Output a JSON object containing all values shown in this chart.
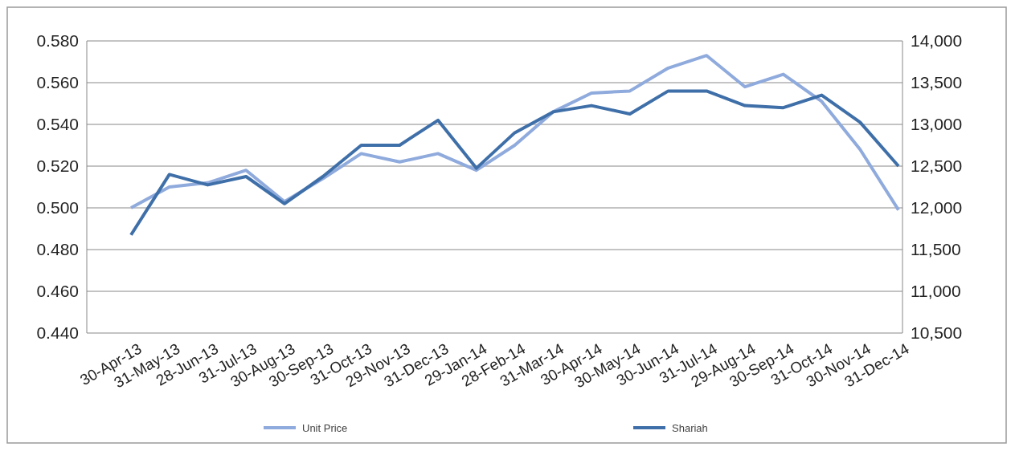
{
  "chart_data": {
    "type": "line",
    "categories": [
      "30-Apr-13",
      "31-May-13",
      "28-Jun-13",
      "31-Jul-13",
      "30-Aug-13",
      "30-Sep-13",
      "31-Oct-13",
      "29-Nov-13",
      "31-Dec-13",
      "29-Jan-14",
      "28-Feb-14",
      "31-Mar-14",
      "30-Apr-14",
      "30-May-14",
      "30-Jun-14",
      "31-Jul-14",
      "29-Aug-14",
      "30-Sep-14",
      "31-Oct-14",
      "30-Nov-14",
      "31-Dec-14"
    ],
    "series": [
      {
        "name": "Unit Price",
        "color": "#8faadc",
        "values": [
          0.5,
          0.51,
          0.512,
          0.518,
          0.503,
          0.514,
          0.526,
          0.522,
          0.526,
          0.518,
          0.53,
          0.546,
          0.555,
          0.556,
          0.567,
          0.573,
          0.558,
          0.564,
          0.551,
          0.528,
          0.499
        ]
      },
      {
        "name": "Shariah",
        "color": "#3f6fa8",
        "axis": "y2",
        "values": [
          11675,
          12400,
          12275,
          12375,
          12050,
          12375,
          12750,
          12750,
          13050,
          12475,
          12900,
          13150,
          13225,
          13125,
          13400,
          13400,
          13225,
          13200,
          13350,
          13025,
          12500
        ]
      }
    ],
    "ylim": [
      0.44,
      0.58
    ],
    "yticks": [
      {
        "value": 0.44,
        "label": "0.440"
      },
      {
        "value": 0.46,
        "label": "0.460"
      },
      {
        "value": 0.48,
        "label": "0.480"
      },
      {
        "value": 0.5,
        "label": "0.500"
      },
      {
        "value": 0.52,
        "label": "0.520"
      },
      {
        "value": 0.54,
        "label": "0.540"
      },
      {
        "value": 0.56,
        "label": "0.560"
      },
      {
        "value": 0.58,
        "label": "0.580"
      }
    ],
    "y2lim": [
      10500,
      14000
    ],
    "y2ticks": [
      {
        "value": 10500,
        "label": "10,500"
      },
      {
        "value": 11000,
        "label": "11,000"
      },
      {
        "value": 11500,
        "label": "11,500"
      },
      {
        "value": 12000,
        "label": "12,000"
      },
      {
        "value": 12500,
        "label": "12,500"
      },
      {
        "value": 13000,
        "label": "13,000"
      },
      {
        "value": 13500,
        "label": "13,500"
      },
      {
        "value": 14000,
        "label": "14,000"
      }
    ],
    "grid": "y",
    "legend": "bottom",
    "marker": "none",
    "line_style": "solid"
  }
}
